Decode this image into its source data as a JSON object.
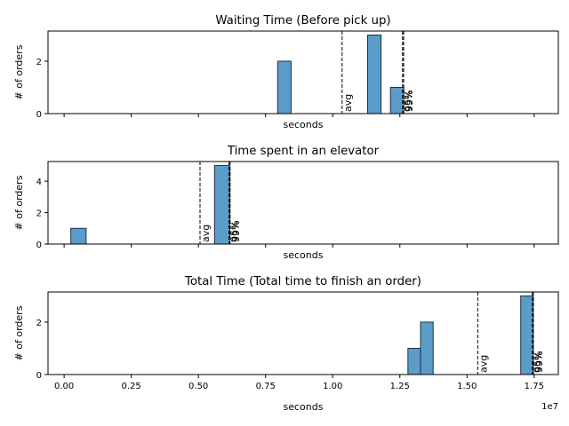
{
  "chart_data": [
    {
      "type": "bar",
      "title": "Waiting Time (Before pick up)",
      "xlabel": "seconds",
      "ylabel": "# of orders",
      "xlim": [
        -600000,
        18400000
      ],
      "ylim": [
        0,
        3.15
      ],
      "yticks": [
        0,
        2
      ],
      "show_xtick_labels": false,
      "bars": [
        {
          "x0": 7950000,
          "x1": 8450000,
          "value": 2
        },
        {
          "x0": 11300000,
          "x1": 11800000,
          "value": 3
        },
        {
          "x0": 12150000,
          "x1": 12650000,
          "value": 1
        }
      ],
      "annotations": [
        {
          "label": "avg",
          "x": 10350000
        },
        {
          "label": "95%",
          "x": 12600000
        },
        {
          "label": "99%",
          "x": 12640000
        }
      ]
    },
    {
      "type": "bar",
      "title": "Time spent in an elevator",
      "xlabel": "seconds",
      "ylabel": "# of orders",
      "xlim": [
        -600000,
        18400000
      ],
      "ylim": [
        0,
        5.25
      ],
      "yticks": [
        0,
        2,
        4
      ],
      "show_xtick_labels": false,
      "bars": [
        {
          "x0": 250000,
          "x1": 820000,
          "value": 1
        },
        {
          "x0": 5600000,
          "x1": 6170000,
          "value": 5
        }
      ],
      "annotations": [
        {
          "label": "avg",
          "x": 5060000
        },
        {
          "label": "95%",
          "x": 6140000
        },
        {
          "label": "99%",
          "x": 6180000
        }
      ]
    },
    {
      "type": "bar",
      "title": "Total Time (Total time to finish an order)",
      "xlabel": "seconds",
      "ylabel": "# of orders",
      "xlim": [
        -600000,
        18400000
      ],
      "ylim": [
        0,
        3.15
      ],
      "yticks": [
        0,
        2
      ],
      "show_xtick_labels": true,
      "xticks": [
        0,
        2500000,
        5000000,
        7500000,
        10000000,
        12500000,
        15000000,
        17500000
      ],
      "xtick_labels": [
        "0.00",
        "0.25",
        "0.50",
        "0.75",
        "1.00",
        "1.25",
        "1.50",
        "1.75"
      ],
      "x_offset_label": "1e7",
      "bars": [
        {
          "x0": 12800000,
          "x1": 13270000,
          "value": 1
        },
        {
          "x0": 13270000,
          "x1": 13740000,
          "value": 2
        },
        {
          "x0": 17000000,
          "x1": 17470000,
          "value": 3
        }
      ],
      "annotations": [
        {
          "label": "avg",
          "x": 15400000
        },
        {
          "label": "95%",
          "x": 17430000
        },
        {
          "label": "99%",
          "x": 17470000
        }
      ]
    }
  ],
  "colors": {
    "bar_fill": "#5b9cc9",
    "bar_edge": "#1f3042",
    "axis": "#000000"
  }
}
